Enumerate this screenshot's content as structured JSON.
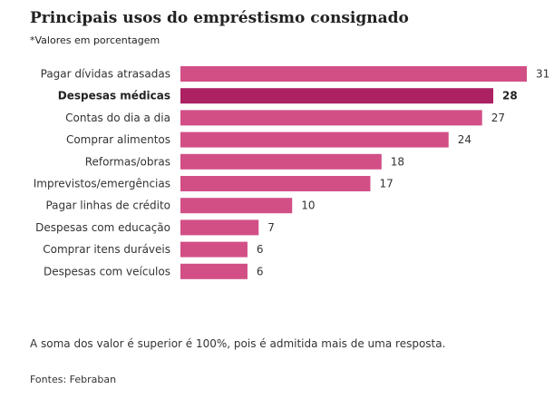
{
  "chart_data": {
    "type": "bar",
    "orientation": "horizontal",
    "title": "Principais usos do empréstismo consignado",
    "subtitle": "*Valores em porcentagem",
    "categories": [
      "Pagar dívidas atrasadas",
      "Despesas médicas",
      "Contas do dia a dia",
      "Comprar alimentos",
      "Reformas/obras",
      "Imprevistos/emergências",
      "Pagar linhas de crédito",
      "Despesas com educação",
      "Comprar itens duráveis",
      "Despesas com veículos"
    ],
    "values": [
      31,
      28,
      27,
      24,
      18,
      17,
      10,
      7,
      6,
      6
    ],
    "highlight_index": 1,
    "xlim": [
      0,
      31
    ],
    "xlabel": "",
    "ylabel": "",
    "grid": false,
    "colors": {
      "bar": "#d24f86",
      "bar_highlight": "#ab2162"
    }
  },
  "footer": {
    "note": "A soma dos valor é superior é 100%, pois é admitida mais de uma resposta.",
    "source": "Fontes: Febraban"
  }
}
